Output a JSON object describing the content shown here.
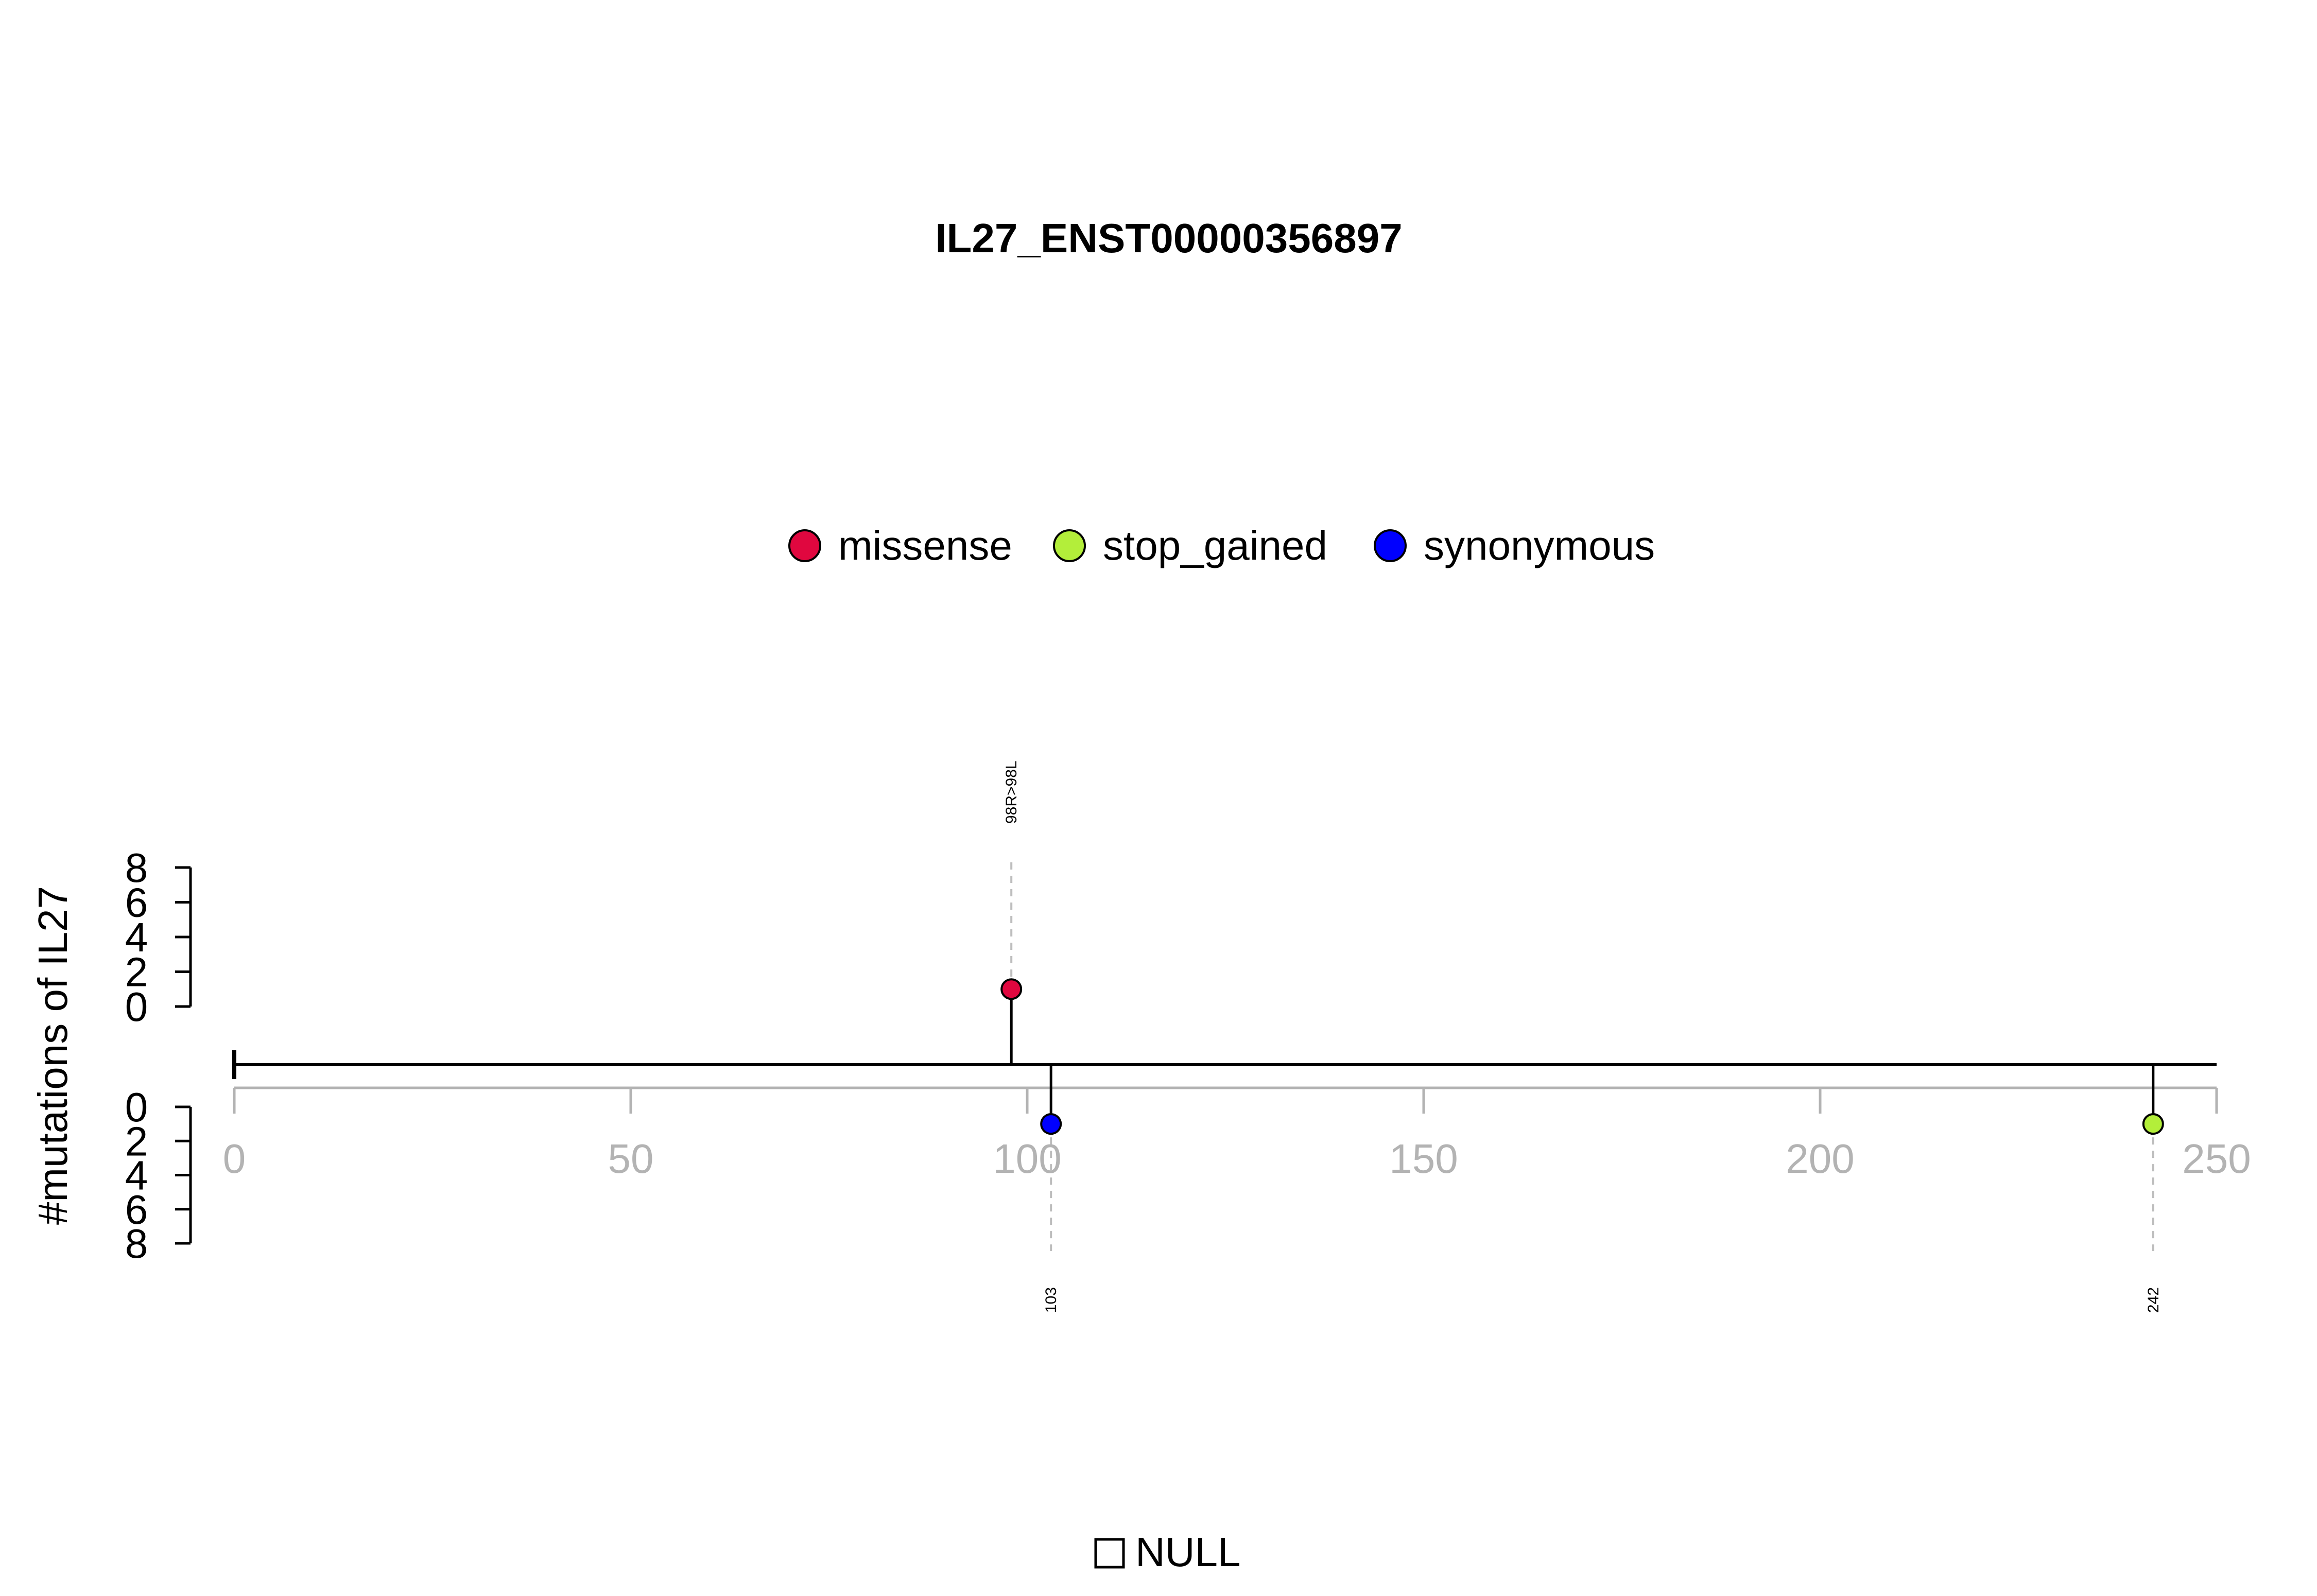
{
  "chart_data": {
    "type": "lollipop",
    "title": "IL27_ENST00000356897",
    "ylabel": "#mutations of IL27",
    "xlim": [
      0,
      250
    ],
    "x_ticks": [
      "0",
      "50",
      "100",
      "150",
      "200",
      "250"
    ],
    "protein_length": 250,
    "upper_axis": {
      "ylim": [
        0,
        8
      ],
      "ticks": [
        "0",
        "2",
        "4",
        "6",
        "8"
      ]
    },
    "lower_axis": {
      "ylim": [
        0,
        8
      ],
      "ticks": [
        "0",
        "2",
        "4",
        "6",
        "8"
      ]
    },
    "legend": {
      "placement": "top-center",
      "items": [
        {
          "label": "missense",
          "color": "#E0073F"
        },
        {
          "label": "stop_gained",
          "color": "#B3EE3A"
        },
        {
          "label": "synonymous",
          "color": "#0000FF"
        }
      ]
    },
    "mutations": [
      {
        "position": 98,
        "count": 1,
        "type": "missense",
        "side": "upper",
        "label": "98R>98L",
        "color": "#E0073F"
      },
      {
        "position": 103,
        "count": 1,
        "type": "synonymous",
        "side": "lower",
        "label": "103",
        "color": "#0000FF"
      },
      {
        "position": 242,
        "count": 1,
        "type": "stop_gained",
        "side": "lower",
        "label": "242",
        "color": "#B3EE3A"
      }
    ],
    "bottom_legend": {
      "label": "NULL"
    }
  }
}
